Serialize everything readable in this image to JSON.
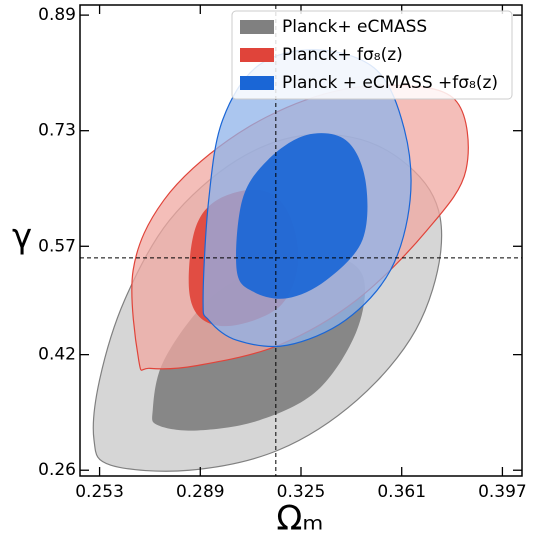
{
  "chart_data": {
    "type": "contour",
    "xlabel": "Ωₘ",
    "ylabel": "γ",
    "xlim": [
      0.246,
      0.404
    ],
    "ylim": [
      0.252,
      0.904
    ],
    "xticks": [
      0.253,
      0.289,
      0.325,
      0.361,
      0.397
    ],
    "yticks": [
      0.26,
      0.42,
      0.57,
      0.73,
      0.89
    ],
    "vlines": [
      0.316
    ],
    "hlines": [
      0.554
    ],
    "legend": "upper right",
    "series": [
      {
        "name": "Planck+ eCMASS",
        "color": "#808080",
        "outer_color": "#c8c8c8",
        "outer": {
          "x": [
            0.251,
            0.253,
            0.262,
            0.278,
            0.302,
            0.327,
            0.352,
            0.371,
            0.375,
            0.366,
            0.345,
            0.317,
            0.285,
            0.257
          ],
          "y": [
            0.302,
            0.385,
            0.496,
            0.606,
            0.689,
            0.724,
            0.71,
            0.648,
            0.565,
            0.454,
            0.357,
            0.288,
            0.26,
            0.267
          ]
        },
        "inner": {
          "x": [
            0.272,
            0.276,
            0.292,
            0.313,
            0.334,
            0.347,
            0.345,
            0.331,
            0.31,
            0.288,
            0.274
          ],
          "y": [
            0.343,
            0.412,
            0.496,
            0.544,
            0.558,
            0.53,
            0.454,
            0.371,
            0.329,
            0.315,
            0.322
          ]
        }
      },
      {
        "name": "Planck+ fσ₈(z)",
        "color": "#e0443a",
        "outer_color": "#f0a8a2",
        "outer": {
          "x": [
            0.267,
            0.265,
            0.276,
            0.299,
            0.327,
            0.355,
            0.38,
            0.384,
            0.37,
            0.345,
            0.317,
            0.288,
            0.271
          ],
          "y": [
            0.412,
            0.537,
            0.634,
            0.717,
            0.773,
            0.793,
            0.773,
            0.676,
            0.592,
            0.496,
            0.433,
            0.405,
            0.401
          ]
        },
        "inner": {
          "x": [
            0.285,
            0.287,
            0.295,
            0.31,
            0.32,
            0.324,
            0.318,
            0.302,
            0.29
          ],
          "y": [
            0.509,
            0.592,
            0.634,
            0.648,
            0.62,
            0.551,
            0.489,
            0.461,
            0.468
          ]
        }
      },
      {
        "name": "Planck + eCMASS +fσ₈(z)",
        "color": "#1a66d6",
        "outer_color": "#8fb3ea",
        "outer": {
          "x": [
            0.29,
            0.292,
            0.297,
            0.31,
            0.331,
            0.352,
            0.362,
            0.364,
            0.357,
            0.341,
            0.32,
            0.302,
            0.292
          ],
          "y": [
            0.496,
            0.634,
            0.745,
            0.821,
            0.842,
            0.814,
            0.731,
            0.634,
            0.537,
            0.468,
            0.433,
            0.44,
            0.468
          ]
        },
        "inner": {
          "x": [
            0.302,
            0.304,
            0.313,
            0.327,
            0.341,
            0.348,
            0.347,
            0.334,
            0.32,
            0.308
          ],
          "y": [
            0.537,
            0.634,
            0.689,
            0.724,
            0.717,
            0.662,
            0.579,
            0.523,
            0.498,
            0.507
          ]
        }
      }
    ]
  }
}
